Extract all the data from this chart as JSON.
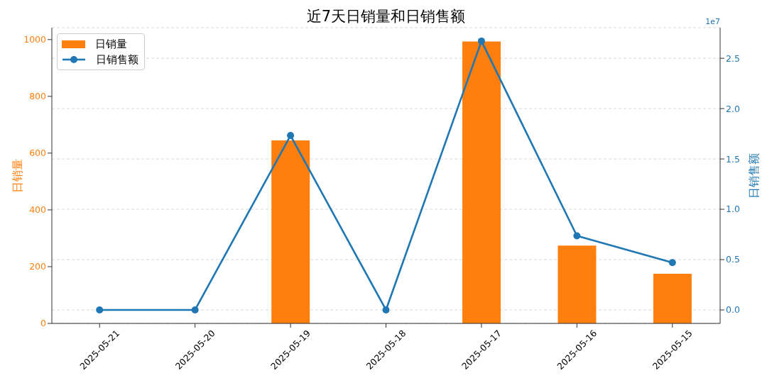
{
  "chart_data": {
    "type": "bar",
    "title": "近7天日销量和日销售额",
    "ylabel": "日销量",
    "y2label": "日销售额",
    "annotations": [
      "1e7"
    ],
    "categories": [
      "2025-05-21",
      "2025-05-20",
      "2025-05-19",
      "2025-05-18",
      "2025-05-17",
      "2025-05-16",
      "2025-05-15"
    ],
    "series": [
      {
        "name": "日销量",
        "color": "#ff7f0e",
        "values": [
          0,
          0,
          645,
          0,
          993,
          274,
          175
        ]
      },
      {
        "name": "日销售额",
        "type": "line",
        "axis": "y2",
        "color": "#1f77b4",
        "values": [
          0,
          0,
          1.733,
          0,
          2.671,
          0.736,
          0.47
        ]
      }
    ],
    "ylim": [
      0,
      1042
    ],
    "yticks": [
      0,
      200,
      400,
      600,
      800,
      1000
    ],
    "y2lim": [
      -0.134,
      2.804
    ],
    "y2ticks": [
      {
        "value": 0,
        "label": "0.0"
      },
      0.5,
      {
        "value": 1,
        "label": "1.0"
      },
      1.5,
      {
        "value": 2,
        "label": "2.0"
      },
      2.5
    ],
    "grid": "y",
    "legend": "top left",
    "marker": "circle",
    "line_style": "solid"
  }
}
